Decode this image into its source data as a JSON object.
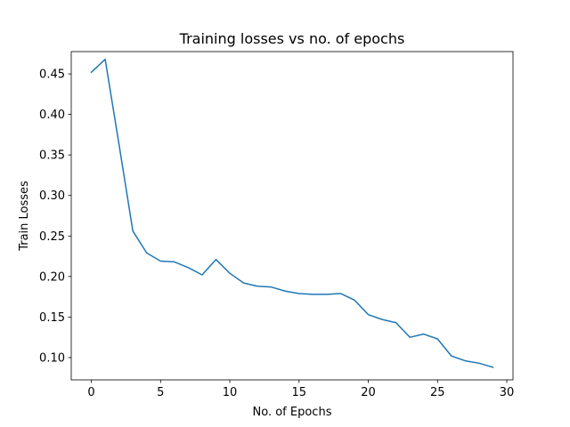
{
  "chart_data": {
    "type": "line",
    "title": "Training losses vs no. of epochs",
    "xlabel": "No. of Epochs",
    "ylabel": "Train Losses",
    "xlim": [
      -1.45,
      30.45
    ],
    "ylim": [
      0.0725,
      0.4775
    ],
    "xticks": [
      0,
      5,
      10,
      15,
      20,
      25,
      30
    ],
    "yticks": [
      0.1,
      0.15,
      0.2,
      0.25,
      0.3,
      0.35,
      0.4,
      0.45
    ],
    "xtick_labels": [
      "0",
      "5",
      "10",
      "15",
      "20",
      "25",
      "30"
    ],
    "ytick_labels": [
      "0.10",
      "0.15",
      "0.20",
      "0.25",
      "0.30",
      "0.35",
      "0.40",
      "0.45"
    ],
    "grid": false,
    "line_color": "#1f77b4",
    "x": [
      0,
      1,
      2,
      3,
      4,
      5,
      6,
      7,
      8,
      9,
      10,
      11,
      12,
      13,
      14,
      15,
      16,
      17,
      18,
      19,
      20,
      21,
      22,
      23,
      24,
      25,
      26,
      27,
      28,
      29
    ],
    "y": [
      0.452,
      0.468,
      0.363,
      0.256,
      0.229,
      0.219,
      0.218,
      0.211,
      0.202,
      0.221,
      0.204,
      0.192,
      0.188,
      0.187,
      0.182,
      0.179,
      0.178,
      0.178,
      0.179,
      0.171,
      0.153,
      0.147,
      0.143,
      0.125,
      0.129,
      0.123,
      0.102,
      0.096,
      0.093,
      0.088
    ]
  }
}
